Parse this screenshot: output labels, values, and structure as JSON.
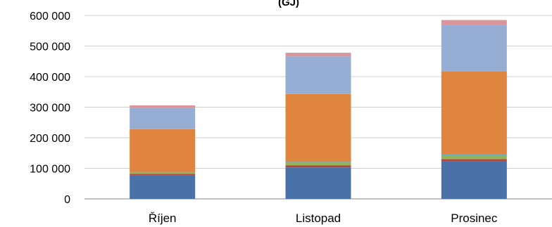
{
  "chart_data": {
    "type": "bar",
    "stacked": true,
    "title": "(GJ)",
    "xlabel": "",
    "ylabel": "",
    "ylim": [
      0,
      600000
    ],
    "yticks": [
      0,
      100000,
      200000,
      300000,
      400000,
      500000,
      600000
    ],
    "ytick_labels": [
      "0",
      "100 000",
      "200 000",
      "300 000",
      "400 000",
      "500 000",
      "600 000"
    ],
    "grid": true,
    "legend": "none",
    "categories": [
      "Říjen",
      "Listopad",
      "Prosinec"
    ],
    "series": [
      {
        "color": "#4a72a8",
        "values": [
          78000,
          103000,
          122000
        ]
      },
      {
        "color": "#b84440",
        "values": [
          4000,
          7000,
          8000
        ]
      },
      {
        "color": "#93b457",
        "values": [
          4000,
          8000,
          12000
        ]
      },
      {
        "color": "#7b5d9e",
        "values": [
          1000,
          1000,
          1000
        ]
      },
      {
        "color": "#4aa5c0",
        "values": [
          1000,
          2000,
          2000
        ]
      },
      {
        "color": "#e0853f",
        "values": [
          140000,
          222000,
          272000
        ]
      },
      {
        "color": "#97aed4",
        "values": [
          70000,
          123000,
          151000
        ]
      },
      {
        "color": "#d9969a",
        "values": [
          8000,
          12000,
          17000
        ]
      }
    ]
  }
}
